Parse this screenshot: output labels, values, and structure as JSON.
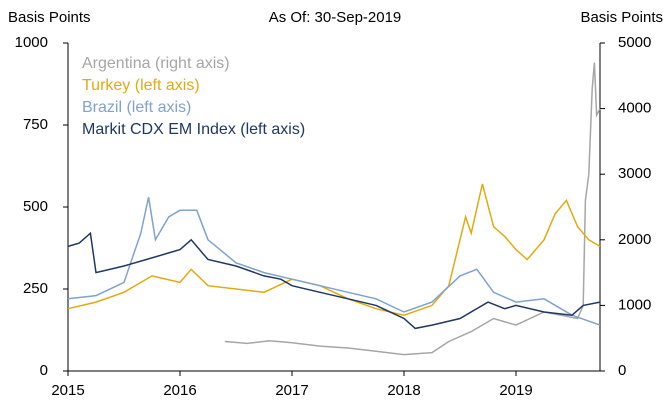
{
  "chart_data": {
    "type": "line",
    "title": "As Of: 30-Sep-2019",
    "ylabel": "Basis Points",
    "y2label": "Basis Points",
    "xlim": [
      2015,
      2019.75
    ],
    "xticks": [
      2015,
      2016,
      2017,
      2018,
      2019
    ],
    "ylim": [
      0,
      1000
    ],
    "yticks": [
      0,
      250,
      500,
      750,
      1000
    ],
    "y2lim": [
      0,
      5000
    ],
    "y2ticks": [
      0,
      1000,
      2000,
      3000,
      4000,
      5000
    ],
    "legend": "upper left",
    "series": [
      {
        "name": "Argentina (right axis)",
        "color": "#a6a6a6",
        "axis": "y2",
        "x": [
          2016.4,
          2016.6,
          2016.8,
          2017.0,
          2017.25,
          2017.5,
          2017.75,
          2018.0,
          2018.25,
          2018.4,
          2018.6,
          2018.8,
          2019.0,
          2019.25,
          2019.4,
          2019.55,
          2019.6,
          2019.62,
          2019.65,
          2019.68,
          2019.7,
          2019.72,
          2019.75
        ],
        "values": [
          450,
          420,
          460,
          430,
          380,
          350,
          300,
          250,
          280,
          450,
          600,
          800,
          700,
          900,
          850,
          800,
          1000,
          2600,
          3000,
          4300,
          4700,
          3900,
          4000
        ]
      },
      {
        "name": "Turkey (left axis)",
        "color": "#e3aa0f",
        "x": [
          2015.0,
          2015.25,
          2015.5,
          2015.75,
          2016.0,
          2016.1,
          2016.25,
          2016.5,
          2016.75,
          2017.0,
          2017.25,
          2017.5,
          2017.75,
          2018.0,
          2018.25,
          2018.4,
          2018.55,
          2018.6,
          2018.7,
          2018.8,
          2018.9,
          2019.0,
          2019.1,
          2019.25,
          2019.35,
          2019.45,
          2019.55,
          2019.65,
          2019.75
        ],
        "values": [
          190,
          210,
          240,
          290,
          270,
          310,
          260,
          250,
          240,
          280,
          260,
          220,
          190,
          170,
          200,
          260,
          470,
          420,
          570,
          440,
          410,
          370,
          340,
          400,
          480,
          520,
          440,
          400,
          380
        ]
      },
      {
        "name": "Brazil (left axis)",
        "color": "#7fa3d0",
        "x": [
          2015.0,
          2015.25,
          2015.5,
          2015.65,
          2015.72,
          2015.78,
          2015.9,
          2016.0,
          2016.15,
          2016.25,
          2016.5,
          2016.75,
          2017.0,
          2017.25,
          2017.5,
          2017.75,
          2018.0,
          2018.25,
          2018.5,
          2018.65,
          2018.8,
          2019.0,
          2019.25,
          2019.5,
          2019.75
        ],
        "values": [
          220,
          230,
          270,
          420,
          530,
          400,
          470,
          490,
          490,
          400,
          330,
          300,
          280,
          260,
          240,
          220,
          180,
          210,
          290,
          310,
          240,
          210,
          220,
          170,
          140
        ]
      },
      {
        "name": "Markit CDX EM Index (left axis)",
        "color": "#1f3864",
        "x": [
          2015.0,
          2015.1,
          2015.2,
          2015.25,
          2015.5,
          2015.7,
          2015.9,
          2016.0,
          2016.1,
          2016.25,
          2016.5,
          2016.75,
          2016.9,
          2017.0,
          2017.25,
          2017.5,
          2017.75,
          2018.0,
          2018.1,
          2018.25,
          2018.5,
          2018.75,
          2018.9,
          2019.0,
          2019.25,
          2019.5,
          2019.6,
          2019.75
        ],
        "values": [
          380,
          390,
          420,
          300,
          320,
          340,
          360,
          370,
          400,
          340,
          320,
          290,
          280,
          260,
          240,
          220,
          200,
          160,
          130,
          140,
          160,
          210,
          190,
          200,
          180,
          170,
          200,
          210
        ]
      }
    ]
  }
}
